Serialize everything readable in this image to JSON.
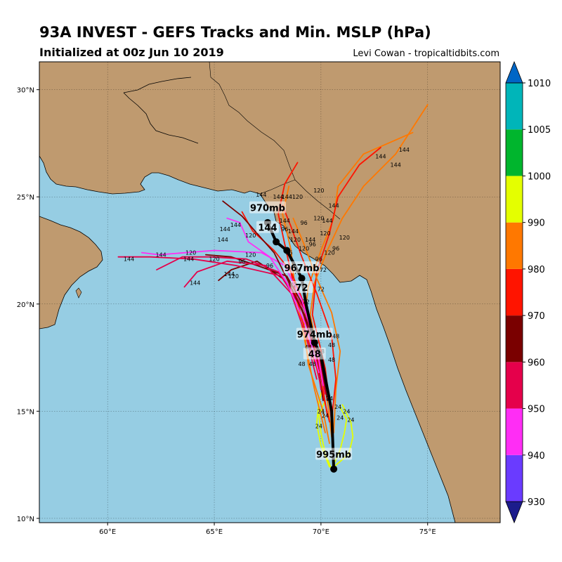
{
  "header": {
    "title": "93A INVEST - GEFS Tracks and Min. MSLP (hPa)",
    "subtitle": "Initialized at 00z Jun 10 2019",
    "credit": "Levi Cowan - tropicaltidbits.com"
  },
  "map": {
    "lon_range": [
      56.8,
      78.4
    ],
    "lat_range": [
      9.8,
      31.3
    ],
    "lon_ticks": [
      "60°E",
      "65°E",
      "70°E",
      "75°E"
    ],
    "lat_ticks": [
      "10°N",
      "15°N",
      "20°N",
      "25°N",
      "30°N"
    ],
    "ocean_color": "#96cde3",
    "land_color": "#bf9a6f"
  },
  "colorbar": {
    "levels": [
      "930",
      "940",
      "950",
      "960",
      "970",
      "980",
      "990",
      "1000",
      "1005",
      "1010"
    ],
    "colors": [
      "#1c1c8c",
      "#6a3bff",
      "#ff2df5",
      "#e5004b",
      "#7a0000",
      "#ff1400",
      "#ff7800",
      "#e4ff00",
      "#00b52d",
      "#00b5b9",
      "#0066c6"
    ]
  },
  "mean_track": {
    "points": [
      {
        "lon": 70.6,
        "lat": 12.3
      },
      {
        "lon": 70.5,
        "lat": 15.0
      },
      {
        "lon": 70.0,
        "lat": 17.6
      },
      {
        "lon": 69.7,
        "lat": 18.2
      },
      {
        "lon": 69.3,
        "lat": 20.0
      },
      {
        "lon": 69.1,
        "lat": 21.2
      },
      {
        "lon": 68.4,
        "lat": 22.5
      },
      {
        "lon": 67.9,
        "lat": 22.9
      },
      {
        "lon": 67.5,
        "lat": 23.8
      }
    ],
    "labels": [
      {
        "pressure": "995mb",
        "hour": "",
        "lon": 70.6,
        "lat": 12.8
      },
      {
        "pressure": "974mb",
        "hour": "48",
        "lon": 69.7,
        "lat": 18.4
      },
      {
        "pressure": "967mb",
        "hour": "72",
        "lon": 69.1,
        "lat": 21.5
      },
      {
        "pressure": "970mb",
        "hour": "144",
        "lon": 67.5,
        "lat": 24.3
      }
    ]
  },
  "member_tracks": [
    {
      "color": "#e4ff00",
      "points": [
        [
          70.5,
          12.3
        ],
        [
          70.9,
          13.2
        ],
        [
          71.1,
          14.0
        ],
        [
          71.2,
          14.6
        ],
        [
          70.9,
          15.2
        ]
      ]
    },
    {
      "color": "#e4ff00",
      "points": [
        [
          70.5,
          12.3
        ],
        [
          70.2,
          13.0
        ],
        [
          70.0,
          14.0
        ],
        [
          69.9,
          14.8
        ],
        [
          70.2,
          15.5
        ]
      ]
    },
    {
      "color": "#e4ff00",
      "points": [
        [
          70.6,
          12.4
        ],
        [
          71.3,
          13.0
        ],
        [
          71.5,
          13.8
        ],
        [
          71.4,
          14.5
        ],
        [
          71.0,
          15.3
        ]
      ]
    },
    {
      "color": "#e4ff00",
      "points": [
        [
          70.4,
          12.4
        ],
        [
          70.0,
          13.4
        ],
        [
          69.8,
          14.4
        ],
        [
          69.9,
          15.4
        ],
        [
          70.1,
          16.2
        ]
      ]
    },
    {
      "color": "#ff7800",
      "points": [
        [
          70.4,
          13.5
        ],
        [
          70.1,
          15.0
        ],
        [
          69.4,
          17.2
        ],
        [
          69.2,
          19.0
        ],
        [
          69.4,
          20.8
        ],
        [
          70.0,
          22.5
        ],
        [
          70.6,
          24.0
        ],
        [
          70.8,
          25.5
        ],
        [
          72.0,
          27.0
        ],
        [
          74.3,
          28.0
        ]
      ]
    },
    {
      "color": "#ff7800",
      "points": [
        [
          70.5,
          13.8
        ],
        [
          70.3,
          15.5
        ],
        [
          69.9,
          17.5
        ],
        [
          69.5,
          19.5
        ],
        [
          69.7,
          21.0
        ],
        [
          70.3,
          22.5
        ],
        [
          71.0,
          24.0
        ],
        [
          72.0,
          25.5
        ],
        [
          73.5,
          27.0
        ],
        [
          75.0,
          29.3
        ]
      ]
    },
    {
      "color": "#ff7800",
      "points": [
        [
          70.2,
          14.0
        ],
        [
          69.7,
          16.0
        ],
        [
          69.2,
          18.5
        ],
        [
          68.8,
          20.5
        ],
        [
          68.6,
          22.5
        ],
        [
          68.2,
          24.2
        ],
        [
          68.5,
          25.5
        ]
      ]
    },
    {
      "color": "#ff1400",
      "points": [
        [
          70.4,
          14.5
        ],
        [
          69.8,
          17.0
        ],
        [
          69.1,
          19.3
        ],
        [
          68.7,
          21.0
        ],
        [
          68.3,
          22.8
        ],
        [
          68.0,
          24.2
        ],
        [
          68.3,
          25.6
        ],
        [
          68.9,
          26.6
        ]
      ]
    },
    {
      "color": "#ff1400",
      "points": [
        [
          70.5,
          14.5
        ],
        [
          70.2,
          17.0
        ],
        [
          69.6,
          19.5
        ],
        [
          69.8,
          21.5
        ],
        [
          70.4,
          23.3
        ],
        [
          70.8,
          25.0
        ],
        [
          71.8,
          26.5
        ],
        [
          72.8,
          27.3
        ]
      ]
    },
    {
      "color": "#ff1400",
      "points": [
        [
          70.3,
          14.8
        ],
        [
          69.9,
          17.2
        ],
        [
          69.3,
          19.8
        ],
        [
          68.6,
          21.5
        ],
        [
          67.8,
          22.5
        ],
        [
          66.8,
          23.4
        ],
        [
          66.3,
          24.3
        ]
      ]
    },
    {
      "color": "#7a0000",
      "points": [
        [
          70.1,
          15.5
        ],
        [
          69.8,
          17.5
        ],
        [
          69.3,
          19.7
        ],
        [
          68.4,
          21.3
        ],
        [
          67.0,
          21.8
        ],
        [
          65.8,
          22.2
        ],
        [
          64.6,
          22.3
        ]
      ]
    },
    {
      "color": "#7a0000",
      "points": [
        [
          70.3,
          15.5
        ],
        [
          69.9,
          17.8
        ],
        [
          69.1,
          19.8
        ],
        [
          68.2,
          21.2
        ],
        [
          67.0,
          22.0
        ],
        [
          65.8,
          21.6
        ],
        [
          65.2,
          21.1
        ]
      ]
    },
    {
      "color": "#e5004b",
      "points": [
        [
          70.0,
          16.0
        ],
        [
          69.7,
          18.0
        ],
        [
          69.0,
          20.0
        ],
        [
          68.0,
          21.5
        ],
        [
          66.5,
          22.1
        ],
        [
          64.8,
          22.2
        ],
        [
          63.5,
          22.2
        ],
        [
          62.3,
          21.6
        ]
      ]
    },
    {
      "color": "#e5004b",
      "points": [
        [
          70.2,
          15.8
        ],
        [
          69.8,
          18.0
        ],
        [
          69.2,
          19.8
        ],
        [
          68.2,
          21.3
        ],
        [
          66.0,
          21.8
        ],
        [
          64.0,
          22.1
        ],
        [
          62.0,
          22.2
        ],
        [
          60.5,
          22.2
        ]
      ]
    },
    {
      "color": "#e5004b",
      "points": [
        [
          69.8,
          16.5
        ],
        [
          69.3,
          18.5
        ],
        [
          68.6,
          20.5
        ],
        [
          67.4,
          21.8
        ],
        [
          65.6,
          22.0
        ],
        [
          64.2,
          21.5
        ],
        [
          63.6,
          20.8
        ]
      ]
    },
    {
      "color": "#ff2df5",
      "points": [
        [
          70.1,
          16.2
        ],
        [
          69.8,
          18.0
        ],
        [
          69.1,
          20.2
        ],
        [
          68.3,
          21.8
        ],
        [
          67.2,
          22.4
        ],
        [
          65.0,
          22.5
        ],
        [
          62.4,
          22.3
        ],
        [
          61.6,
          22.4
        ]
      ]
    },
    {
      "color": "#ff2df5",
      "points": [
        [
          69.9,
          16.8
        ],
        [
          69.3,
          19.0
        ],
        [
          68.4,
          21.0
        ],
        [
          67.6,
          22.2
        ],
        [
          66.6,
          22.9
        ],
        [
          66.2,
          23.8
        ],
        [
          65.6,
          24.0
        ]
      ]
    },
    {
      "color": "#7a0000",
      "points": [
        [
          69.8,
          17.5
        ],
        [
          69.2,
          19.5
        ],
        [
          68.5,
          21.0
        ],
        [
          67.8,
          22.4
        ],
        [
          67.0,
          23.3
        ],
        [
          66.3,
          24.1
        ],
        [
          65.4,
          24.8
        ]
      ]
    },
    {
      "color": "#ff7800",
      "points": [
        [
          70.6,
          14.0
        ],
        [
          70.7,
          16.0
        ],
        [
          70.9,
          17.8
        ],
        [
          70.5,
          19.6
        ],
        [
          69.8,
          21.2
        ],
        [
          69.2,
          22.8
        ],
        [
          68.7,
          24.0
        ]
      ]
    },
    {
      "color": "#ff1400",
      "points": [
        [
          70.5,
          14.6
        ],
        [
          70.7,
          16.5
        ],
        [
          70.5,
          18.5
        ],
        [
          69.8,
          20.5
        ],
        [
          69.1,
          22.2
        ],
        [
          68.6,
          23.6
        ],
        [
          68.2,
          24.6
        ]
      ]
    }
  ],
  "hour_labels": [
    {
      "text": "24",
      "lon": 70.4,
      "lat": 15.6
    },
    {
      "text": "24",
      "lon": 70.0,
      "lat": 15.0
    },
    {
      "text": "24",
      "lon": 70.8,
      "lat": 15.2
    },
    {
      "text": "24",
      "lon": 71.2,
      "lat": 15.0
    },
    {
      "text": "24",
      "lon": 71.4,
      "lat": 14.6
    },
    {
      "text": "24",
      "lon": 69.9,
      "lat": 14.3
    },
    {
      "text": "24",
      "lon": 70.2,
      "lat": 14.8
    },
    {
      "text": "24",
      "lon": 70.9,
      "lat": 14.7
    },
    {
      "text": "48",
      "lon": 70.0,
      "lat": 17.8
    },
    {
      "text": "48",
      "lon": 69.4,
      "lat": 18.0
    },
    {
      "text": "48",
      "lon": 70.5,
      "lat": 18.1
    },
    {
      "text": "48",
      "lon": 70.7,
      "lat": 18.5
    },
    {
      "text": "48",
      "lon": 69.1,
      "lat": 17.2
    },
    {
      "text": "48",
      "lon": 69.6,
      "lat": 17.2
    },
    {
      "text": "48",
      "lon": 70.5,
      "lat": 17.4
    },
    {
      "text": "72",
      "lon": 69.3,
      "lat": 20.1
    },
    {
      "text": "72",
      "lon": 68.9,
      "lat": 21.5
    },
    {
      "text": "72",
      "lon": 70.1,
      "lat": 21.6
    },
    {
      "text": "72",
      "lon": 70.0,
      "lat": 20.7
    },
    {
      "text": "72",
      "lon": 68.7,
      "lat": 20.9
    },
    {
      "text": "96",
      "lon": 68.5,
      "lat": 22.4
    },
    {
      "text": "96",
      "lon": 69.9,
      "lat": 22.1
    },
    {
      "text": "96",
      "lon": 70.7,
      "lat": 22.6
    },
    {
      "text": "96",
      "lon": 69.6,
      "lat": 22.8
    },
    {
      "text": "96",
      "lon": 66.3,
      "lat": 22.0
    },
    {
      "text": "96",
      "lon": 67.6,
      "lat": 21.8
    },
    {
      "text": "96",
      "lon": 68.3,
      "lat": 23.5
    },
    {
      "text": "96",
      "lon": 69.2,
      "lat": 23.8
    },
    {
      "text": "120",
      "lon": 68.8,
      "lat": 23.0
    },
    {
      "text": "120",
      "lon": 70.2,
      "lat": 23.3
    },
    {
      "text": "120",
      "lon": 71.1,
      "lat": 23.1
    },
    {
      "text": "120",
      "lon": 70.4,
      "lat": 22.4
    },
    {
      "text": "120",
      "lon": 69.2,
      "lat": 22.6
    },
    {
      "text": "120",
      "lon": 66.7,
      "lat": 22.3
    },
    {
      "text": "120",
      "lon": 65.0,
      "lat": 22.1
    },
    {
      "text": "120",
      "lon": 65.9,
      "lat": 21.3
    },
    {
      "text": "120",
      "lon": 63.9,
      "lat": 22.4
    },
    {
      "text": "120",
      "lon": 66.7,
      "lat": 23.2
    },
    {
      "text": "120",
      "lon": 69.9,
      "lat": 24.0
    },
    {
      "text": "120",
      "lon": 69.9,
      "lat": 25.3
    },
    {
      "text": "120",
      "lon": 68.9,
      "lat": 25.0
    },
    {
      "text": "144",
      "lon": 67.2,
      "lat": 25.1
    },
    {
      "text": "144",
      "lon": 68.0,
      "lat": 25.0
    },
    {
      "text": "144",
      "lon": 68.4,
      "lat": 25.0
    },
    {
      "text": "144",
      "lon": 68.3,
      "lat": 23.9
    },
    {
      "text": "144",
      "lon": 68.7,
      "lat": 23.4
    },
    {
      "text": "144",
      "lon": 69.5,
      "lat": 23.0
    },
    {
      "text": "144",
      "lon": 70.3,
      "lat": 23.9
    },
    {
      "text": "144",
      "lon": 70.6,
      "lat": 24.6
    },
    {
      "text": "144",
      "lon": 66.0,
      "lat": 23.7
    },
    {
      "text": "144",
      "lon": 65.5,
      "lat": 23.5
    },
    {
      "text": "144",
      "lon": 65.4,
      "lat": 23.0
    },
    {
      "text": "144",
      "lon": 62.5,
      "lat": 22.3
    },
    {
      "text": "144",
      "lon": 61.0,
      "lat": 22.1
    },
    {
      "text": "144",
      "lon": 63.8,
      "lat": 22.1
    },
    {
      "text": "144",
      "lon": 65.7,
      "lat": 21.4
    },
    {
      "text": "144",
      "lon": 64.1,
      "lat": 21.0
    },
    {
      "text": "144",
      "lon": 73.9,
      "lat": 27.2
    },
    {
      "text": "144",
      "lon": 72.8,
      "lat": 26.9
    },
    {
      "text": "144",
      "lon": 73.5,
      "lat": 26.5
    }
  ]
}
